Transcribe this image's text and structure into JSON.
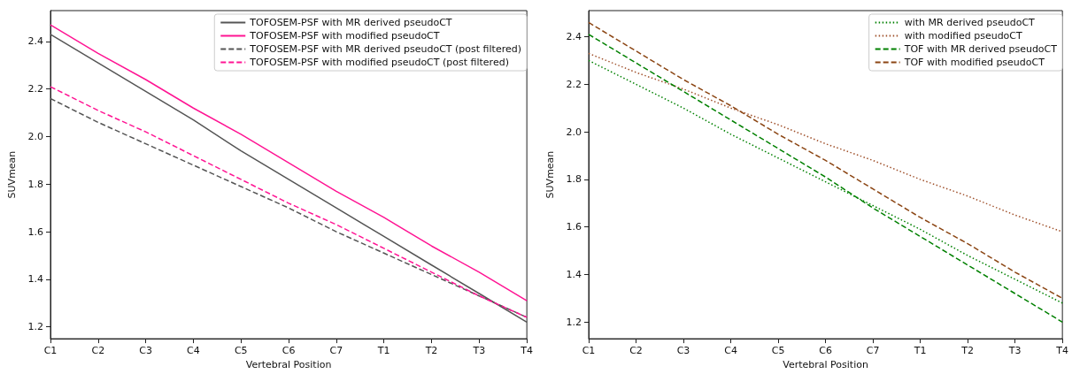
{
  "chart_data": [
    {
      "type": "line",
      "xlabel": "Vertebral Position",
      "ylabel": "SUVmean",
      "categories": [
        "C1",
        "C2",
        "C3",
        "C4",
        "C5",
        "C6",
        "C7",
        "T1",
        "T2",
        "T3",
        "T4"
      ],
      "ylim": [
        1.15,
        2.53
      ],
      "yticks": [
        1.2,
        1.4,
        1.6,
        1.8,
        {
          "value": 2,
          "label": "2.0"
        },
        2.2,
        2.4
      ],
      "grid": false,
      "legend": "top right",
      "marker": "none",
      "series": [
        {
          "name": "TOFOSEM-PSF with MR derived pseudoCT",
          "color": "#555555",
          "line_style": "solid",
          "values": [
            2.43,
            2.31,
            2.19,
            2.07,
            1.94,
            1.82,
            1.7,
            1.58,
            1.46,
            1.34,
            1.22
          ]
        },
        {
          "name": "TOFOSEM-PSF with modified pseudoCT",
          "color": "#ff1493",
          "line_style": "solid",
          "values": [
            2.47,
            2.35,
            2.24,
            2.12,
            2.01,
            1.89,
            1.77,
            1.66,
            1.54,
            1.43,
            1.31
          ]
        },
        {
          "name": "TOFOSEM-PSF with MR derived pseudoCT (post filtered)",
          "color": "#555555",
          "line_style": "dashed",
          "values": [
            2.16,
            2.06,
            1.97,
            1.88,
            1.79,
            1.7,
            1.6,
            1.51,
            1.42,
            1.33,
            1.24
          ]
        },
        {
          "name": "TOFOSEM-PSF with modified pseudoCT (post filtered)",
          "color": "#ff1493",
          "line_style": "dashed",
          "values": [
            2.21,
            2.11,
            2.02,
            1.92,
            1.82,
            1.72,
            1.63,
            1.53,
            1.43,
            1.33,
            1.24
          ]
        }
      ]
    },
    {
      "type": "line",
      "xlabel": "Vertebral Position",
      "ylabel": "SUVmean",
      "categories": [
        "C1",
        "C2",
        "C3",
        "C4",
        "C5",
        "C6",
        "C7",
        "T1",
        "T2",
        "T3",
        "T4"
      ],
      "ylim": [
        1.13,
        2.51
      ],
      "yticks": [
        1.2,
        1.4,
        1.6,
        1.8,
        {
          "value": 2,
          "label": "2.0"
        },
        2.2,
        2.4
      ],
      "grid": false,
      "legend": "top right",
      "marker": "none",
      "series": [
        {
          "name": "with MR derived pseudoCT",
          "color": "#008000",
          "line_style": "dotted",
          "values": [
            2.3,
            2.2,
            2.1,
            1.99,
            1.89,
            1.79,
            1.69,
            1.59,
            1.48,
            1.38,
            1.28
          ]
        },
        {
          "name": "with modified pseudoCT",
          "color": "#a0522d",
          "line_style": "dotted",
          "values": [
            2.33,
            2.25,
            2.18,
            2.1,
            2.03,
            1.95,
            1.88,
            1.8,
            1.73,
            1.65,
            1.58
          ]
        },
        {
          "name": "TOF with MR derived pseudoCT",
          "color": "#008000",
          "line_style": "dashed",
          "values": [
            2.41,
            2.29,
            2.17,
            2.05,
            1.93,
            1.81,
            1.68,
            1.56,
            1.44,
            1.32,
            1.2
          ]
        },
        {
          "name": "TOF with modified pseudoCT",
          "color": "#8b4513",
          "line_style": "dashed",
          "values": [
            2.46,
            2.34,
            2.22,
            2.11,
            1.99,
            1.88,
            1.76,
            1.64,
            1.53,
            1.41,
            1.3
          ]
        }
      ]
    }
  ]
}
